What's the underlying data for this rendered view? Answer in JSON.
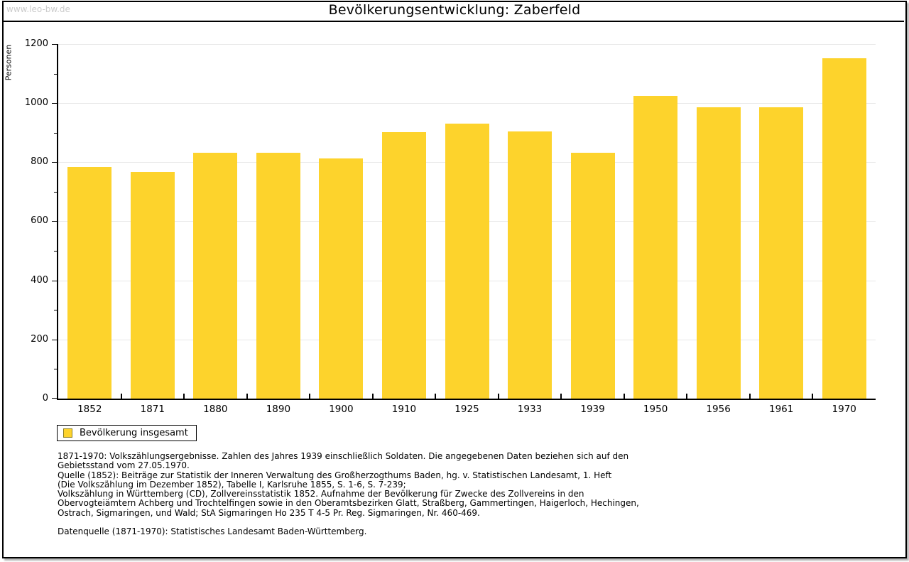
{
  "header": {
    "watermark": "www.leo-bw.de",
    "title": "Bevölkerungsentwicklung: Zaberfeld"
  },
  "chart_data": {
    "type": "bar",
    "title": "Bevölkerungsentwicklung: Zaberfeld",
    "xlabel": "",
    "ylabel": "Personen",
    "categories": [
      "1852",
      "1871",
      "1880",
      "1890",
      "1900",
      "1910",
      "1925",
      "1933",
      "1939",
      "1950",
      "1956",
      "1961",
      "1970"
    ],
    "series": [
      {
        "name": "Bevölkerung insgesamt",
        "values": [
          783,
          767,
          832,
          831,
          812,
          902,
          931,
          904,
          831,
          1024,
          986,
          985,
          1151
        ]
      }
    ],
    "ylim": [
      0,
      1200
    ],
    "y_ticks": [
      0,
      200,
      400,
      600,
      800,
      1000,
      1200
    ],
    "y_major_step": 200,
    "y_minor_step": 100,
    "grid": true,
    "legend_position": "bottom-left",
    "bar_color": "#FDD32C",
    "gridline_color": "#e8e8e8",
    "watermark_color": "#cbcbcb"
  },
  "legend": {
    "items": [
      {
        "label": "Bevölkerung insgesamt",
        "color": "#FDD32C"
      }
    ]
  },
  "footnotes": {
    "lines": [
      "1871-1970: Volkszählungsergebnisse. Zahlen des Jahres 1939 einschließlich Soldaten. Die angegebenen Daten beziehen sich auf den",
      "Gebietsstand vom 27.05.1970.",
      "Quelle (1852): Beiträge zur Statistik der Inneren Verwaltung des Großherzogthums Baden, hg. v. Statistischen Landesamt, 1. Heft",
      "(Die Volkszählung im Dezember 1852), Tabelle I, Karlsruhe 1855, S. 1-6, S. 7-239;",
      "Volkszählung in Württemberg (CD), Zollvereinsstatistik 1852. Aufnahme der Bevölkerung für Zwecke des Zollvereins in den",
      "Obervogteiämtern Achberg und Trochtelfingen sowie in den Oberamtsbezirken Glatt, Straßberg, Gammertingen, Haigerloch, Hechingen,",
      "Ostrach, Sigmaringen, und Wald; StA Sigmaringen Ho 235 T 4-5 Pr. Reg. Sigmaringen, Nr. 460-469."
    ],
    "datasource": "Datenquelle (1871-1970): Statistisches Landesamt Baden-Württemberg."
  }
}
